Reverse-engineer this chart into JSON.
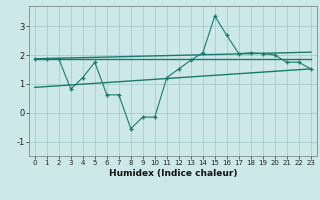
{
  "xlabel": "Humidex (Indice chaleur)",
  "background_color": "#cce8e8",
  "line_color": "#1a7a6e",
  "grid_color": "#aacccc",
  "xlim": [
    -0.5,
    23.5
  ],
  "ylim": [
    -1.5,
    3.7
  ],
  "yticks": [
    -1,
    0,
    1,
    2,
    3
  ],
  "xticks": [
    0,
    1,
    2,
    3,
    4,
    5,
    6,
    7,
    8,
    9,
    10,
    11,
    12,
    13,
    14,
    15,
    16,
    17,
    18,
    19,
    20,
    21,
    22,
    23
  ],
  "zigzag_x": [
    0,
    1,
    2,
    3,
    4,
    5,
    6,
    7,
    8,
    9,
    10,
    11,
    12,
    13,
    14,
    15,
    16,
    17,
    18,
    19,
    20,
    21,
    22,
    23
  ],
  "zigzag_y": [
    1.87,
    1.87,
    1.87,
    0.82,
    1.22,
    1.75,
    0.62,
    0.62,
    -0.55,
    -0.15,
    -0.15,
    1.22,
    1.52,
    1.82,
    2.08,
    3.35,
    2.68,
    2.05,
    2.08,
    2.05,
    2.0,
    1.75,
    1.75,
    1.52
  ],
  "line1_x": [
    0,
    23
  ],
  "line1_y": [
    1.87,
    1.87
  ],
  "line2_x": [
    0,
    23
  ],
  "line2_y": [
    0.88,
    1.52
  ],
  "line3_x": [
    0,
    23
  ],
  "line3_y": [
    1.87,
    2.1
  ]
}
